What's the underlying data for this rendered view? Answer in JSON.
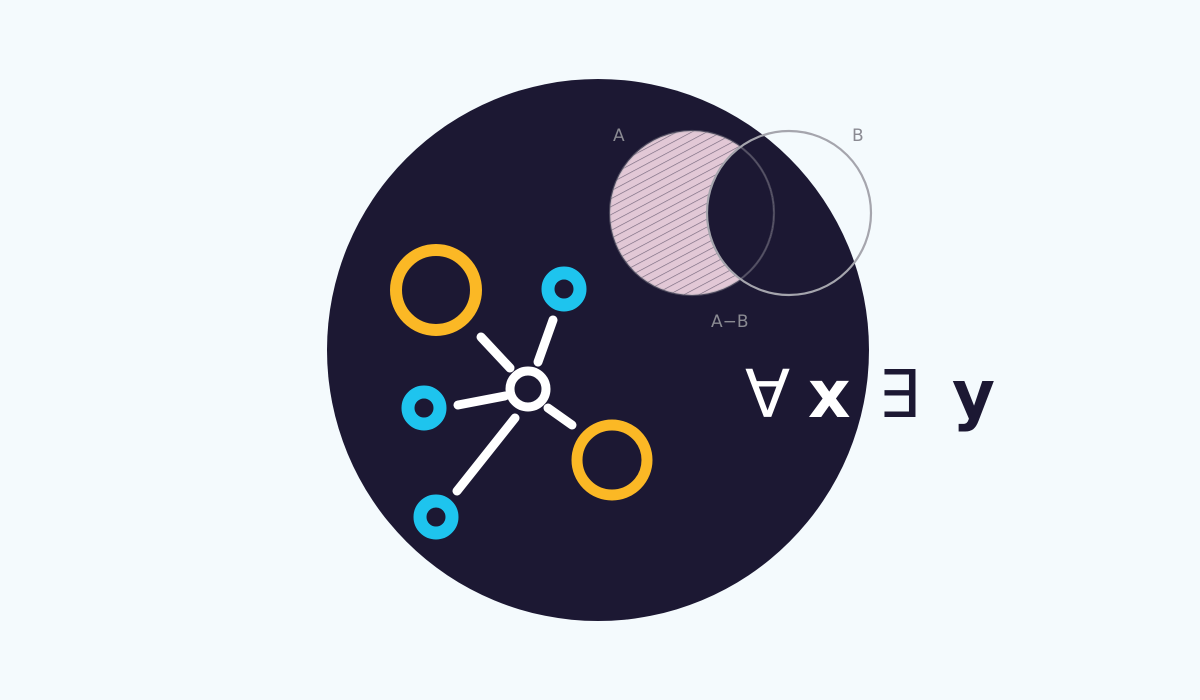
{
  "colors": {
    "background": "#f4fafd",
    "disc": "#1c1833",
    "node_gold": "#fbb825",
    "node_cyan": "#1ec4ee",
    "link_white": "#ffffff",
    "venn_fill": "#e2c8d6",
    "venn_outline": "#a5a5ad",
    "label_gray": "#8a8a92"
  },
  "icons": {
    "network": "network-graph-icon",
    "venn": "venn-difference-icon"
  },
  "venn": {
    "label_a": "A",
    "label_b": "B",
    "label_difference": "A−B"
  },
  "logic": {
    "forall": "∀",
    "x": "x",
    "exists": "∃",
    "y": "y"
  }
}
